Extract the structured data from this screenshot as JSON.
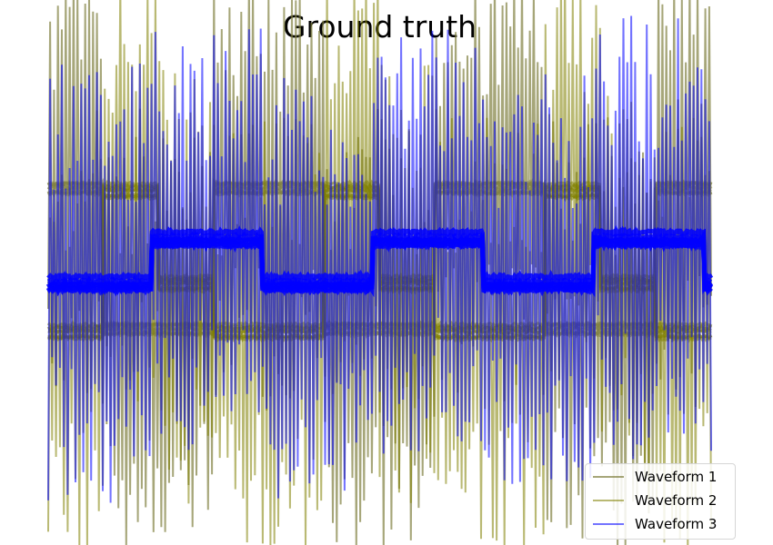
{
  "chart_data": {
    "type": "line",
    "title": "Ground truth",
    "xlabel": "",
    "ylabel": "",
    "axes_visible": false,
    "grid": false,
    "legend_position": "bottom-right",
    "x_range": [
      0,
      3
    ],
    "y_range": [
      -3.3,
      3.5
    ],
    "series": [
      {
        "name": "Waveform 1",
        "color": "#808040",
        "opacity": 0.7,
        "underlying": "square wave, period 1, levels -0.65 / +1.25, with level jitter and large spike noise",
        "clean_levels": [
          -0.65,
          1.25
        ],
        "period": 1,
        "phase": 0.25
      },
      {
        "name": "Waveform 2",
        "color": "#808000",
        "opacity": 0.55,
        "underlying": "3-level wave with period 1, levels -0.65 / 0 / 1.25, with level jitter and large spike noise",
        "clean_levels": [
          -0.65,
          0.0,
          1.25
        ],
        "period": 1
      },
      {
        "name": "Waveform 3",
        "color": "#0000ff",
        "opacity": 0.55,
        "underlying": "square wave, period 1, levels 0 / 0.6, duty 0.5, with spike noise",
        "clean_levels": [
          0.0,
          0.6
        ],
        "period": 1,
        "phase": 0.47
      }
    ]
  }
}
